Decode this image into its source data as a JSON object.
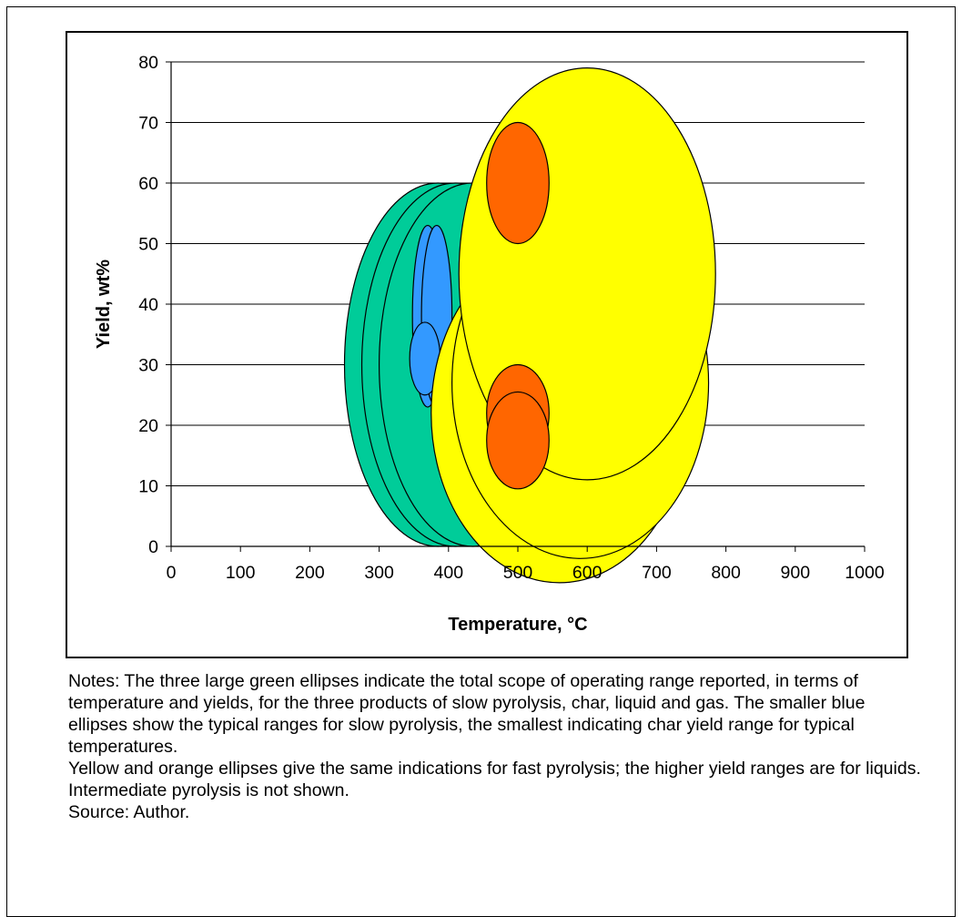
{
  "chart_data": {
    "type": "scatter",
    "title": "",
    "xlabel": "Temperature, °C",
    "ylabel": "Yield, wt%",
    "xlim": [
      0,
      1000
    ],
    "ylim": [
      0,
      80
    ],
    "x_ticks": [
      0,
      100,
      200,
      300,
      400,
      500,
      600,
      700,
      800,
      900,
      1000
    ],
    "y_ticks": [
      0,
      10,
      20,
      30,
      40,
      50,
      60,
      70,
      80
    ],
    "grid": "horizontal",
    "legend": "none",
    "ellipses": [
      {
        "group": "slow-total-range",
        "color": "#00CC99",
        "cx": 385,
        "cy": 30,
        "rx": 135,
        "ry": 30
      },
      {
        "group": "slow-total-range",
        "color": "#00CC99",
        "cx": 410,
        "cy": 30,
        "rx": 135,
        "ry": 30
      },
      {
        "group": "slow-total-range",
        "color": "#00CC99",
        "cx": 435,
        "cy": 30,
        "rx": 135,
        "ry": 30
      },
      {
        "group": "slow-typical",
        "color": "#3399FF",
        "cx": 370,
        "cy": 38,
        "rx": 22,
        "ry": 15
      },
      {
        "group": "slow-typical",
        "color": "#3399FF",
        "cx": 383,
        "cy": 38,
        "rx": 22,
        "ry": 15
      },
      {
        "group": "slow-typical-char",
        "color": "#3399FF",
        "cx": 366,
        "cy": 31,
        "rx": 22,
        "ry": 6
      },
      {
        "group": "fast-total-range",
        "color": "#FFFF00",
        "cx": 560,
        "cy": 22,
        "rx": 185,
        "ry": 28
      },
      {
        "group": "fast-total-range",
        "color": "#FFFF00",
        "cx": 590,
        "cy": 27,
        "rx": 185,
        "ry": 29
      },
      {
        "group": "fast-total-range",
        "color": "#FFFF00",
        "cx": 600,
        "cy": 45,
        "rx": 185,
        "ry": 34
      },
      {
        "group": "fast-typical",
        "color": "#FF6600",
        "cx": 500,
        "cy": 60,
        "rx": 45,
        "ry": 10
      },
      {
        "group": "fast-typical",
        "color": "#FF6600",
        "cx": 500,
        "cy": 22,
        "rx": 45,
        "ry": 8
      },
      {
        "group": "fast-typical-char",
        "color": "#FF6600",
        "cx": 500,
        "cy": 17.5,
        "rx": 45,
        "ry": 8
      }
    ]
  },
  "notes": {
    "line1": "Notes: The three large green ellipses indicate the total scope of operating range reported, in terms of temperature and yields, for the three products of slow pyrolysis, char, liquid and gas. The smaller blue ellipses show the typical ranges for slow pyrolysis, the smallest indicating char yield range for typical temperatures.",
    "line2": "Yellow and orange ellipses give the same indications for fast pyrolysis; the higher yield ranges are for liquids.",
    "line3": "Intermediate pyrolysis is not shown.",
    "line4": "Source: Author."
  }
}
